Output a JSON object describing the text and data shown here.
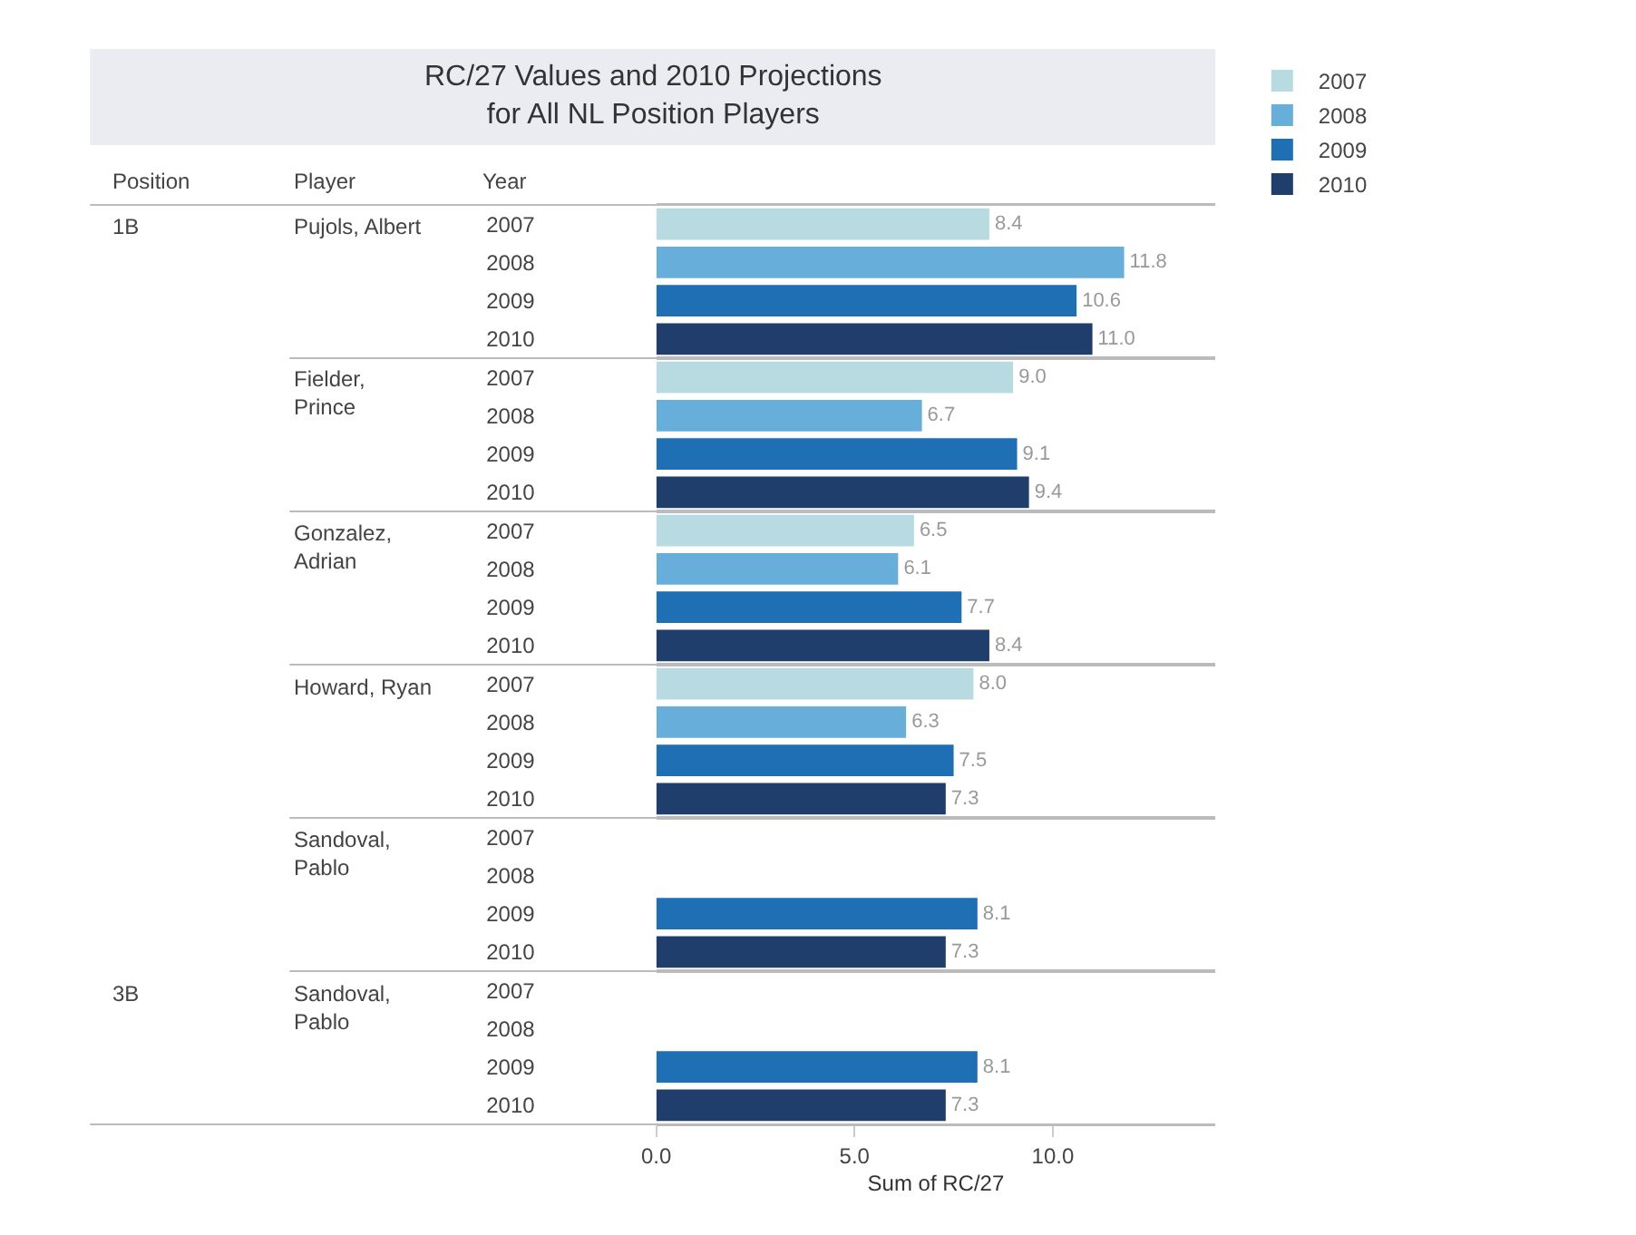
{
  "chart_data": [
    {
      "type": "bar",
      "orientation": "horizontal",
      "title": "RC/27 Values and 2010 Projections\nfor All NL Position Players",
      "annotations": [
        "Position",
        "Player",
        "Year",
        "1B"
      ],
      "ylabel": "Pujols, Albert",
      "categories": [
        "2007",
        "2008",
        "2009",
        "2010"
      ],
      "legend": "top right",
      "xlim": [
        0,
        14.1
      ],
      "tick_labels": "y",
      "series": [
        {
          "name": "2007",
          "color": "#b7dbe1",
          "values": [
            8.4,
            null,
            null,
            null
          ],
          "value_labels": [
            "8.4",
            null,
            null,
            null
          ]
        },
        {
          "name": "2008",
          "color": "#67aedb",
          "values": [
            null,
            11.8,
            null,
            null
          ],
          "value_labels": [
            null,
            "11.8",
            null,
            null
          ]
        },
        {
          "name": "2009",
          "color": "#1f6fb4",
          "values": [
            null,
            null,
            10.6,
            null
          ],
          "value_labels": [
            null,
            null,
            "10.6",
            null
          ]
        },
        {
          "name": "2010",
          "color": "#1f3e6c",
          "values": [
            null,
            null,
            null,
            11.0
          ],
          "value_labels": [
            null,
            null,
            null,
            "11.0"
          ]
        }
      ]
    },
    {
      "type": "bar",
      "orientation": "horizontal",
      "ylabel": "Fielder, Prince",
      "categories": [
        "2007",
        "2008",
        "2009",
        "2010"
      ],
      "xlim": [
        0,
        14.1
      ],
      "tick_labels": "y",
      "series": [
        {
          "color": "#b7dbe1",
          "values": [
            9.0,
            null,
            null,
            null
          ],
          "value_labels": [
            "9.0",
            null,
            null,
            null
          ]
        },
        {
          "color": "#67aedb",
          "values": [
            null,
            6.7,
            null,
            null
          ],
          "value_labels": [
            null,
            "6.7",
            null,
            null
          ]
        },
        {
          "color": "#1f6fb4",
          "values": [
            null,
            null,
            9.1,
            null
          ],
          "value_labels": [
            null,
            null,
            "9.1",
            null
          ]
        },
        {
          "color": "#1f3e6c",
          "values": [
            null,
            null,
            null,
            9.4
          ],
          "value_labels": [
            null,
            null,
            null,
            "9.4"
          ]
        }
      ]
    },
    {
      "type": "bar",
      "orientation": "horizontal",
      "ylabel": "Gonzalez, Adrian",
      "categories": [
        "2007",
        "2008",
        "2009",
        "2010"
      ],
      "xlim": [
        0,
        14.1
      ],
      "tick_labels": "y",
      "series": [
        {
          "color": "#b7dbe1",
          "values": [
            6.5,
            null,
            null,
            null
          ],
          "value_labels": [
            "6.5",
            null,
            null,
            null
          ]
        },
        {
          "color": "#67aedb",
          "values": [
            null,
            6.1,
            null,
            null
          ],
          "value_labels": [
            null,
            "6.1",
            null,
            null
          ]
        },
        {
          "color": "#1f6fb4",
          "values": [
            null,
            null,
            7.7,
            null
          ],
          "value_labels": [
            null,
            null,
            "7.7",
            null
          ]
        },
        {
          "color": "#1f3e6c",
          "values": [
            null,
            null,
            null,
            8.4
          ],
          "value_labels": [
            null,
            null,
            null,
            "8.4"
          ]
        }
      ]
    },
    {
      "type": "bar",
      "orientation": "horizontal",
      "ylabel": "Howard, Ryan",
      "categories": [
        "2007",
        "2008",
        "2009",
        "2010"
      ],
      "xlim": [
        0,
        14.1
      ],
      "tick_labels": "y",
      "series": [
        {
          "color": "#b7dbe1",
          "values": [
            8.0,
            null,
            null,
            null
          ],
          "value_labels": [
            "8.0",
            null,
            null,
            null
          ]
        },
        {
          "color": "#67aedb",
          "values": [
            null,
            6.3,
            null,
            null
          ],
          "value_labels": [
            null,
            "6.3",
            null,
            null
          ]
        },
        {
          "color": "#1f6fb4",
          "values": [
            null,
            null,
            7.5,
            null
          ],
          "value_labels": [
            null,
            null,
            "7.5",
            null
          ]
        },
        {
          "color": "#1f3e6c",
          "values": [
            null,
            null,
            null,
            7.3
          ],
          "value_labels": [
            null,
            null,
            null,
            "7.3"
          ]
        }
      ]
    },
    {
      "type": "bar",
      "orientation": "horizontal",
      "ylabel": "Sandoval, Pablo",
      "categories": [
        "2007",
        "2008",
        "2009",
        "2010"
      ],
      "xlim": [
        0,
        14.1
      ],
      "tick_labels": "y",
      "series": [
        {
          "color": "#1f6fb4",
          "values": [
            null,
            null,
            8.1,
            null
          ],
          "value_labels": [
            null,
            null,
            "8.1",
            null
          ]
        },
        {
          "color": "#1f3e6c",
          "values": [
            null,
            null,
            null,
            7.3
          ],
          "value_labels": [
            null,
            null,
            null,
            "7.3"
          ]
        }
      ]
    },
    {
      "type": "bar",
      "orientation": "horizontal",
      "annotations": [
        "3B"
      ],
      "ylabel": "Sandoval, Pablo",
      "xlabel": "Sum of RC/27",
      "categories": [
        "2007",
        "2008",
        "2009",
        "2010"
      ],
      "xlim": [
        0,
        14.1
      ],
      "xticks": [
        {
          "value": 0,
          "label": "0.0"
        },
        {
          "value": 5,
          "label": "5.0"
        },
        {
          "value": 10,
          "label": "10.0"
        }
      ],
      "series": [
        {
          "color": "#1f6fb4",
          "values": [
            null,
            null,
            8.1,
            null
          ],
          "value_labels": [
            null,
            null,
            "8.1",
            null
          ]
        },
        {
          "color": "#1f3e6c",
          "values": [
            null,
            null,
            null,
            7.3
          ],
          "value_labels": [
            null,
            null,
            null,
            "7.3"
          ]
        }
      ]
    }
  ]
}
